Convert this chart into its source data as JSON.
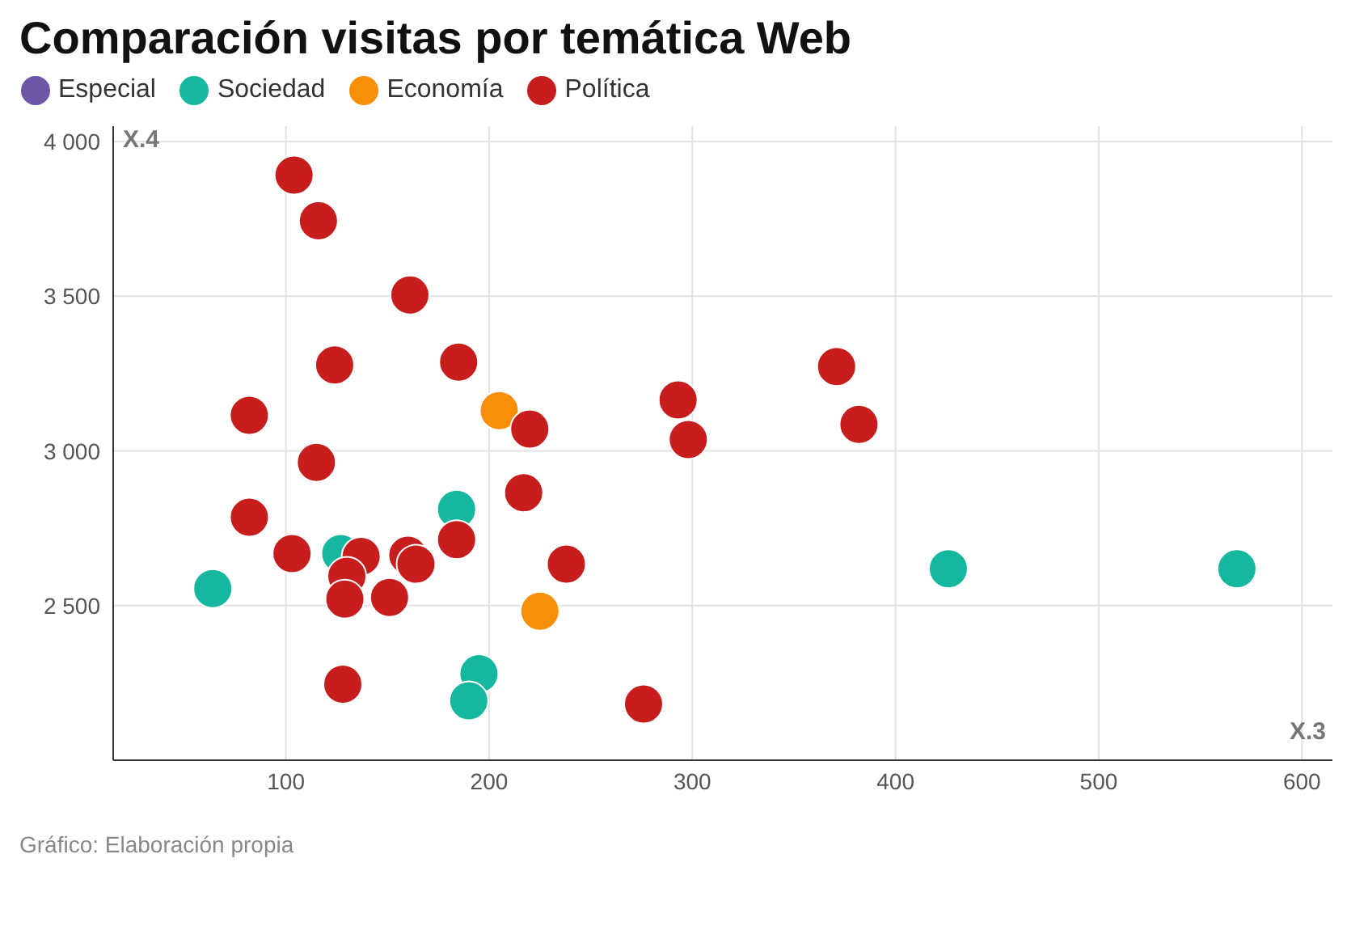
{
  "chart_data": {
    "type": "scatter",
    "title": "Comparación visitas por temática Web",
    "xlabel": "X.3",
    "ylabel": "X.4",
    "annotations": [
      "Gráfico: Elaboración propia"
    ],
    "xlim": [
      15,
      615
    ],
    "xticks": [
      100,
      200,
      300,
      400,
      500,
      600
    ],
    "ylim": [
      2000,
      4050
    ],
    "yticks": [
      {
        "value": 2500,
        "label": "2 500"
      },
      {
        "value": 3000,
        "label": "3 000"
      },
      {
        "value": 3500,
        "label": "3 500"
      },
      {
        "value": 4000,
        "label": "4 000"
      }
    ],
    "grid": true,
    "legend": "top left",
    "marker": "circle",
    "series": [
      {
        "name": "Especial",
        "color": "#6e56a6"
      },
      {
        "name": "Sociedad",
        "color": "#15b79e",
        "x": [
          64,
          127,
          184,
          195,
          190,
          426,
          568
        ],
        "values": [
          2555,
          2668,
          2811,
          2280,
          2192,
          2619,
          2619
        ]
      },
      {
        "name": "Economía",
        "color": "#f79007",
        "x": [
          205,
          225
        ],
        "values": [
          3130,
          2482
        ]
      },
      {
        "name": "Política",
        "color": "#c71e1d",
        "x": [
          104,
          116,
          161,
          124,
          185,
          82,
          115,
          220,
          217,
          82,
          103,
          137,
          130,
          129,
          151,
          160,
          164,
          184,
          238,
          128,
          276,
          293,
          298,
          371,
          382
        ],
        "values": [
          3892,
          3744,
          3504,
          3278,
          3287,
          3115,
          2963,
          3071,
          2865,
          2786,
          2668,
          2659,
          2595,
          2521,
          2526,
          2663,
          2634,
          2713,
          2634,
          2246,
          2182,
          3165,
          3037,
          3273,
          3086
        ]
      }
    ]
  }
}
